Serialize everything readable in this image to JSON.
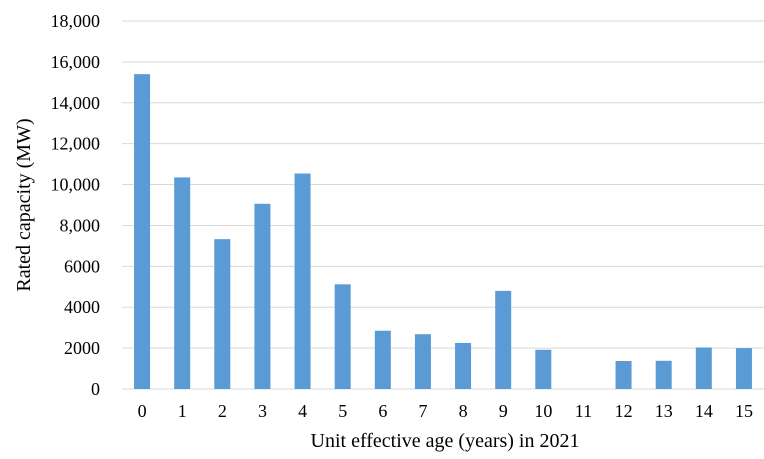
{
  "chart_data": {
    "type": "bar",
    "title": "",
    "xlabel": "Unit effective age (years) in 2021",
    "ylabel": "Rated capacity (MW)",
    "categories": [
      "0",
      "1",
      "2",
      "3",
      "4",
      "5",
      "6",
      "7",
      "8",
      "9",
      "10",
      "11",
      "12",
      "13",
      "14",
      "15"
    ],
    "values": [
      15400,
      10350,
      7330,
      9060,
      10540,
      5120,
      2850,
      2680,
      2250,
      4800,
      1920,
      0,
      1370,
      1380,
      2030,
      2000
    ],
    "ylim": [
      0,
      18000
    ],
    "yticks": [
      0,
      2000,
      4000,
      6000,
      8000,
      10000,
      12000,
      14000,
      16000,
      18000
    ],
    "ytick_labels": [
      "0",
      "2000",
      "4000",
      "6000",
      "8,000",
      "10,000",
      "12,000",
      "14,000",
      "16,000",
      "18,000"
    ],
    "grid": true,
    "legend": "none",
    "colors": {
      "bar": "#5b9bd5",
      "grid": "#d9d9d9",
      "text": "#000000"
    }
  }
}
